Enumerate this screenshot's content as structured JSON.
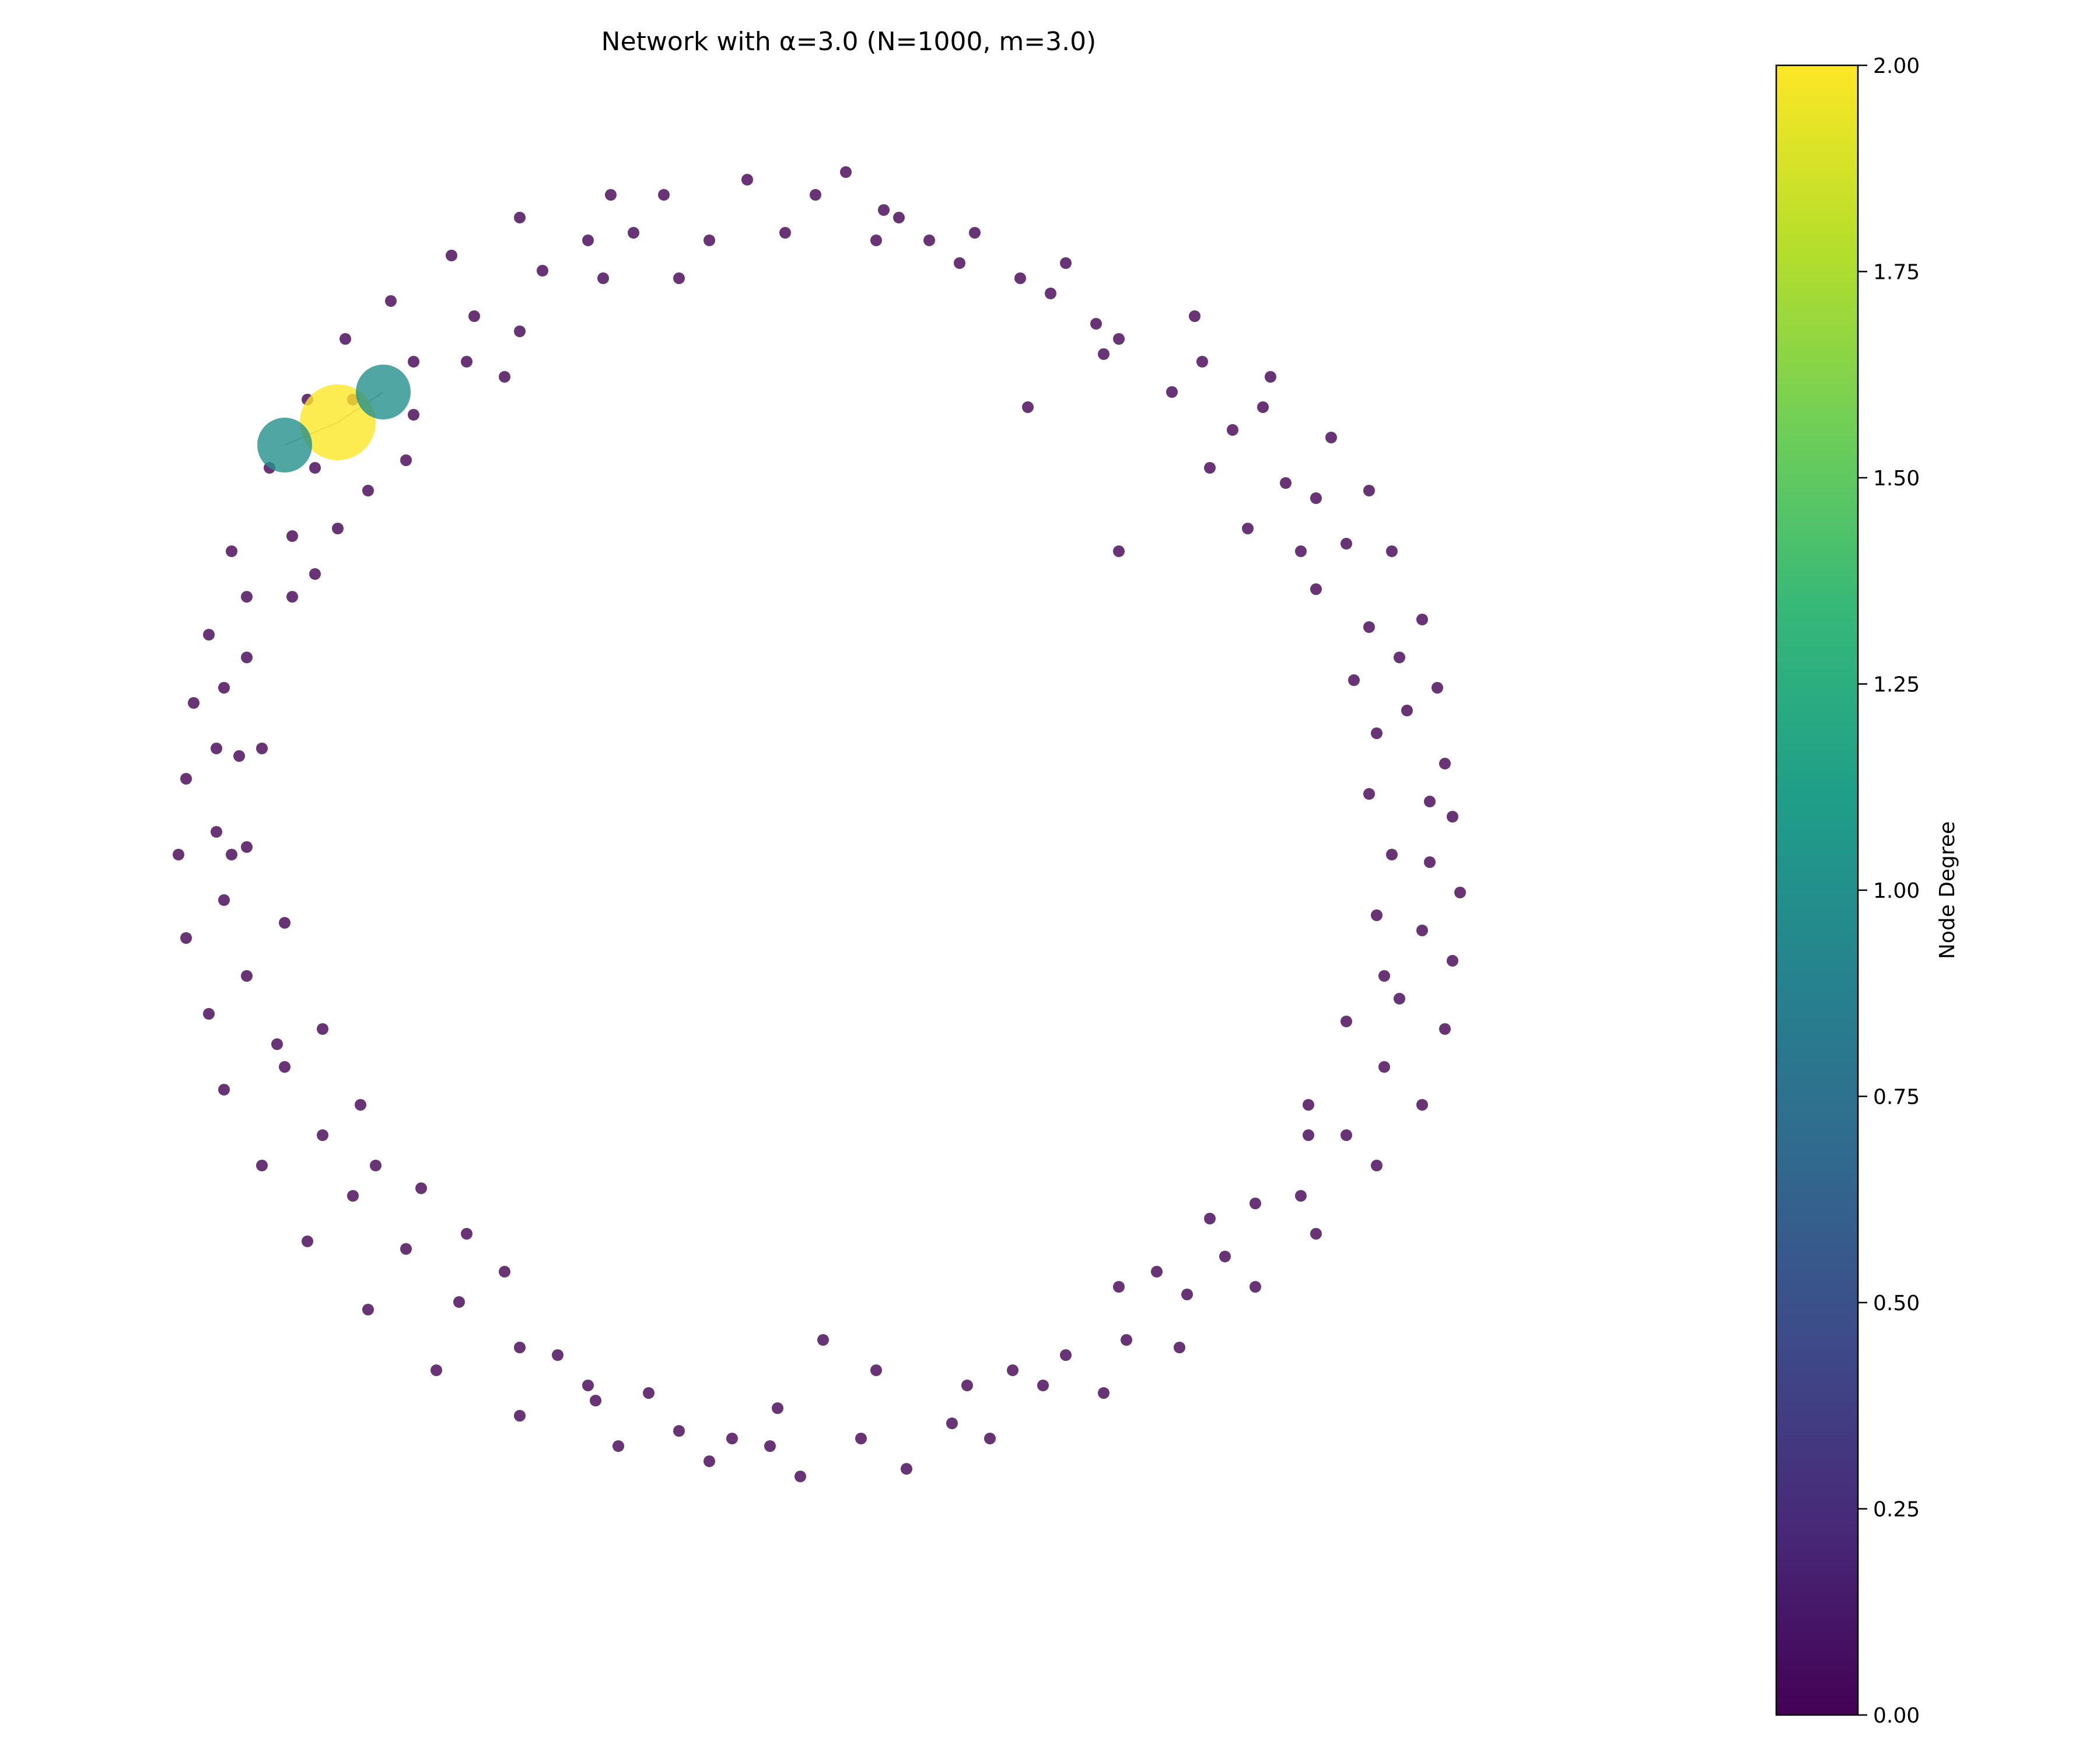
{
  "chart_data": {
    "type": "scatter",
    "title": "Network with α=3.0 (N=1000, m=3.0)",
    "grid": false,
    "axes_visible": false,
    "colormap": "viridis",
    "colormap_stops": [
      "#440154",
      "#482878",
      "#3e4989",
      "#31688e",
      "#26828e",
      "#1f9e89",
      "#35b779",
      "#6ece58",
      "#b5de2b",
      "#fde725"
    ],
    "node_alpha": 0.8,
    "edge_color": "#6f6f6f",
    "colorbar": {
      "label": "Node Degree",
      "range": [
        0.0,
        2.0
      ],
      "ticks": [
        "0.00",
        "0.25",
        "0.50",
        "0.75",
        "1.00",
        "1.25",
        "1.50",
        "1.75",
        "2.00"
      ],
      "tick_values": [
        0,
        0.25,
        0.5,
        0.75,
        1.0,
        1.25,
        1.5,
        1.75,
        2.0
      ]
    },
    "edges": [
      [
        0,
        1
      ],
      [
        0,
        2
      ]
    ],
    "connected_nodes": [
      {
        "x": -0.67,
        "y": 0.52,
        "degree": 2
      },
      {
        "x": -0.61,
        "y": 0.56,
        "degree": 1
      },
      {
        "x": -0.74,
        "y": 0.49,
        "degree": 1
      }
    ],
    "isolated_nodes": {
      "degree": 0,
      "points": [
        [
          -0.31,
          0.82
        ],
        [
          -0.13,
          0.84
        ],
        [
          0.0,
          0.85
        ],
        [
          0.05,
          0.8
        ],
        [
          0.17,
          0.77
        ],
        [
          0.29,
          0.73
        ],
        [
          0.46,
          0.66
        ],
        [
          0.56,
          0.58
        ],
        [
          0.64,
          0.5
        ],
        [
          0.69,
          0.43
        ],
        [
          0.72,
          0.35
        ],
        [
          0.76,
          0.26
        ],
        [
          0.78,
          0.17
        ],
        [
          0.79,
          0.07
        ],
        [
          0.8,
          0.0
        ],
        [
          0.81,
          -0.1
        ],
        [
          0.8,
          -0.19
        ],
        [
          0.79,
          -0.28
        ],
        [
          0.76,
          -0.38
        ],
        [
          0.7,
          -0.46
        ],
        [
          0.62,
          -0.55
        ],
        [
          0.54,
          -0.62
        ],
        [
          0.44,
          -0.7
        ],
        [
          0.34,
          -0.76
        ],
        [
          0.19,
          -0.82
        ],
        [
          0.08,
          -0.86
        ],
        [
          -0.06,
          -0.87
        ],
        [
          -0.18,
          -0.85
        ],
        [
          -0.3,
          -0.83
        ],
        [
          -0.43,
          -0.79
        ],
        [
          -0.54,
          -0.73
        ],
        [
          -0.63,
          -0.65
        ],
        [
          -0.71,
          -0.56
        ],
        [
          -0.77,
          -0.46
        ],
        [
          -0.82,
          -0.36
        ],
        [
          -0.84,
          -0.26
        ],
        [
          -0.87,
          -0.16
        ],
        [
          -0.88,
          -0.05
        ],
        [
          -0.87,
          0.05
        ],
        [
          -0.86,
          0.15
        ],
        [
          -0.84,
          0.24
        ],
        [
          -0.81,
          0.35
        ],
        [
          -0.76,
          0.46
        ],
        [
          -0.71,
          0.55
        ],
        [
          -0.66,
          0.63
        ],
        [
          -0.6,
          0.68
        ],
        [
          -0.52,
          0.74
        ],
        [
          -0.43,
          0.79
        ],
        [
          -0.24,
          0.82
        ],
        [
          -0.04,
          0.82
        ],
        [
          0.07,
          0.79
        ],
        [
          0.15,
          0.73
        ],
        [
          0.27,
          0.69
        ],
        [
          0.36,
          0.63
        ],
        [
          0.47,
          0.6
        ],
        [
          0.55,
          0.54
        ],
        [
          0.62,
          0.42
        ],
        [
          0.66,
          0.36
        ],
        [
          0.73,
          0.21
        ],
        [
          0.74,
          0.14
        ],
        [
          0.77,
          0.02
        ],
        [
          0.77,
          -0.06
        ],
        [
          0.76,
          -0.15
        ],
        [
          0.73,
          -0.24
        ],
        [
          0.71,
          -0.33
        ],
        [
          0.66,
          -0.42
        ],
        [
          0.6,
          -0.5
        ],
        [
          0.5,
          -0.58
        ],
        [
          0.45,
          -0.63
        ],
        [
          0.37,
          -0.69
        ],
        [
          0.26,
          -0.75
        ],
        [
          0.14,
          -0.8
        ],
        [
          0.02,
          -0.82
        ],
        [
          -0.1,
          -0.83
        ],
        [
          -0.22,
          -0.81
        ],
        [
          -0.33,
          -0.77
        ],
        [
          -0.43,
          -0.7
        ],
        [
          -0.51,
          -0.64
        ],
        [
          -0.58,
          -0.57
        ],
        [
          -0.65,
          -0.5
        ],
        [
          -0.69,
          -0.42
        ],
        [
          -0.74,
          -0.33
        ],
        [
          -0.79,
          -0.21
        ],
        [
          -0.82,
          -0.11
        ],
        [
          -0.83,
          -0.02
        ],
        [
          -0.83,
          0.09
        ],
        [
          -0.82,
          0.17
        ],
        [
          -0.79,
          0.29
        ],
        [
          -0.73,
          0.37
        ],
        [
          -0.7,
          0.46
        ],
        [
          -0.65,
          0.55
        ],
        [
          -0.57,
          0.6
        ],
        [
          -0.49,
          0.66
        ],
        [
          -0.4,
          0.72
        ],
        [
          -0.34,
          0.76
        ],
        [
          -0.18,
          0.76
        ],
        [
          -0.08,
          0.77
        ],
        [
          0.04,
          0.76
        ],
        [
          0.11,
          0.76
        ],
        [
          0.23,
          0.71
        ],
        [
          0.33,
          0.65
        ],
        [
          0.43,
          0.56
        ],
        [
          0.51,
          0.51
        ],
        [
          0.58,
          0.44
        ],
        [
          0.62,
          0.3
        ],
        [
          0.69,
          0.25
        ],
        [
          0.7,
          0.11
        ],
        [
          0.72,
          -0.05
        ],
        [
          0.71,
          -0.21
        ],
        [
          0.61,
          -0.38
        ],
        [
          0.54,
          -0.51
        ],
        [
          0.41,
          -0.6
        ],
        [
          0.29,
          -0.71
        ],
        [
          0.16,
          -0.75
        ],
        [
          0.04,
          -0.73
        ],
        [
          -0.09,
          -0.78
        ],
        [
          -0.26,
          -0.76
        ],
        [
          -0.38,
          -0.71
        ],
        [
          -0.45,
          -0.6
        ],
        [
          -0.56,
          -0.49
        ],
        [
          -0.64,
          -0.38
        ],
        [
          -0.69,
          -0.28
        ],
        [
          -0.74,
          -0.14
        ],
        [
          -0.79,
          -0.04
        ],
        [
          -0.8,
          0.08
        ],
        [
          -0.79,
          0.21
        ],
        [
          -0.73,
          0.29
        ],
        [
          -0.67,
          0.38
        ],
        [
          -0.58,
          0.47
        ],
        [
          -0.45,
          0.58
        ],
        [
          -0.43,
          0.64
        ],
        [
          -0.32,
          0.71
        ],
        [
          -0.22,
          0.71
        ],
        [
          0.24,
          0.54
        ],
        [
          0.34,
          0.61
        ],
        [
          0.48,
          0.46
        ],
        [
          0.53,
          0.38
        ],
        [
          0.6,
          0.35
        ],
        [
          0.67,
          0.18
        ],
        [
          0.69,
          0.03
        ],
        [
          0.7,
          -0.13
        ],
        [
          0.66,
          -0.27
        ],
        [
          0.61,
          -0.42
        ],
        [
          0.48,
          -0.53
        ],
        [
          0.36,
          -0.62
        ],
        [
          0.22,
          -0.73
        ],
        [
          -0.03,
          -0.69
        ],
        [
          -0.15,
          -0.82
        ],
        [
          -0.34,
          -0.75
        ],
        [
          -0.5,
          -0.55
        ],
        [
          -0.62,
          -0.46
        ],
        [
          -0.75,
          -0.3
        ],
        [
          -0.81,
          -0.05
        ],
        [
          -0.77,
          0.09
        ],
        [
          -0.7,
          0.32
        ],
        [
          -0.63,
          0.43
        ],
        [
          -0.57,
          0.53
        ],
        [
          -0.5,
          0.6
        ],
        [
          -0.28,
          0.77
        ],
        [
          0.36,
          0.35
        ]
      ]
    }
  }
}
